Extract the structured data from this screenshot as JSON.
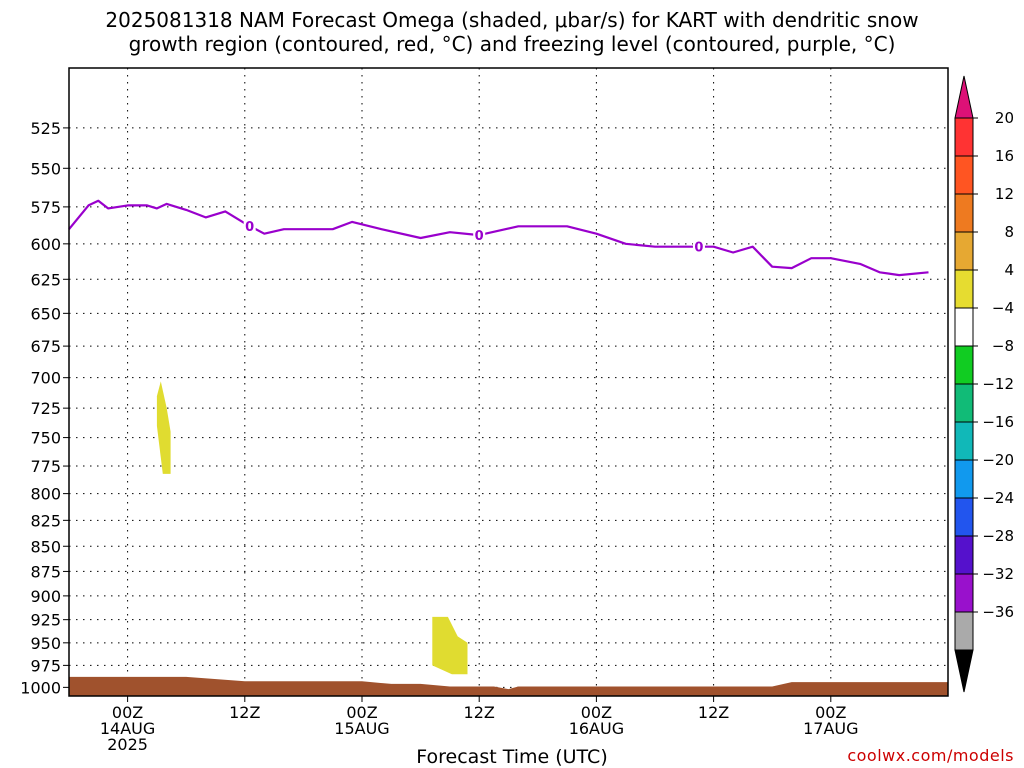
{
  "title_line1": "2025081318 NAM Forecast Omega (shaded, μbar/s) for KART with dendritic snow",
  "title_line2": "growth region (contoured, red, °C) and freezing level (contoured, purple, °C)",
  "xlabel": "Forecast Time (UTC)",
  "credit": "coolwx.com/models",
  "chart_data": {
    "type": "area",
    "title": "2025081318 NAM Forecast Omega (shaded, μbar/s) for KART with dendritic snow growth region (contoured, red, °C) and freezing level (contoured, purple, °C)",
    "xlabel": "Forecast Time (UTC)",
    "ylabel": "",
    "y_scale": "log-pressure",
    "y_inverted": true,
    "ylim": [
      1010,
      490
    ],
    "y_ticks": [
      525,
      550,
      575,
      600,
      625,
      650,
      675,
      700,
      725,
      750,
      775,
      800,
      825,
      850,
      875,
      900,
      925,
      950,
      975,
      1000
    ],
    "xlim": [
      "2025-08-13T18:00Z",
      "2025-08-17T12:00Z"
    ],
    "x_ticks": [
      {
        "t": "2025-08-14T00:00Z",
        "label": "00Z",
        "sub1": "14AUG",
        "sub2": "2025"
      },
      {
        "t": "2025-08-14T12:00Z",
        "label": "12Z",
        "sub1": "",
        "sub2": ""
      },
      {
        "t": "2025-08-15T00:00Z",
        "label": "00Z",
        "sub1": "15AUG",
        "sub2": ""
      },
      {
        "t": "2025-08-15T12:00Z",
        "label": "12Z",
        "sub1": "",
        "sub2": ""
      },
      {
        "t": "2025-08-16T00:00Z",
        "label": "00Z",
        "sub1": "16AUG",
        "sub2": ""
      },
      {
        "t": "2025-08-16T12:00Z",
        "label": "12Z",
        "sub1": "",
        "sub2": ""
      },
      {
        "t": "2025-08-17T00:00Z",
        "label": "00Z",
        "sub1": "17AUG",
        "sub2": ""
      }
    ],
    "grid": true,
    "freezing_level": {
      "contour_label": "0",
      "color": "#9900cc",
      "label_times": [
        "2025-08-14T12:30Z",
        "2025-08-15T12:00Z",
        "2025-08-16T10:30Z"
      ],
      "points": [
        [
          "2025-08-13T18:00Z",
          590
        ],
        [
          "2025-08-13T20:00Z",
          574
        ],
        [
          "2025-08-13T21:00Z",
          571
        ],
        [
          "2025-08-13T22:00Z",
          576
        ],
        [
          "2025-08-14T00:00Z",
          574
        ],
        [
          "2025-08-14T02:00Z",
          574
        ],
        [
          "2025-08-14T03:00Z",
          576
        ],
        [
          "2025-08-14T04:00Z",
          573
        ],
        [
          "2025-08-14T06:00Z",
          577
        ],
        [
          "2025-08-14T08:00Z",
          582
        ],
        [
          "2025-08-14T10:00Z",
          578
        ],
        [
          "2025-08-14T12:00Z",
          586
        ],
        [
          "2025-08-14T14:00Z",
          593
        ],
        [
          "2025-08-14T16:00Z",
          590
        ],
        [
          "2025-08-14T18:00Z",
          590
        ],
        [
          "2025-08-14T21:00Z",
          590
        ],
        [
          "2025-08-14T23:00Z",
          585
        ],
        [
          "2025-08-15T02:00Z",
          590
        ],
        [
          "2025-08-15T06:00Z",
          596
        ],
        [
          "2025-08-15T09:00Z",
          592
        ],
        [
          "2025-08-15T12:00Z",
          594
        ],
        [
          "2025-08-15T14:00Z",
          591
        ],
        [
          "2025-08-15T16:00Z",
          588
        ],
        [
          "2025-08-15T18:00Z",
          588
        ],
        [
          "2025-08-15T21:00Z",
          588
        ],
        [
          "2025-08-16T00:00Z",
          593
        ],
        [
          "2025-08-16T03:00Z",
          600
        ],
        [
          "2025-08-16T06:00Z",
          602
        ],
        [
          "2025-08-16T09:00Z",
          602
        ],
        [
          "2025-08-16T12:00Z",
          602
        ],
        [
          "2025-08-16T14:00Z",
          606
        ],
        [
          "2025-08-16T16:00Z",
          602
        ],
        [
          "2025-08-16T18:00Z",
          616
        ],
        [
          "2025-08-16T20:00Z",
          617
        ],
        [
          "2025-08-16T22:00Z",
          610
        ],
        [
          "2025-08-17T00:00Z",
          610
        ],
        [
          "2025-08-17T03:00Z",
          614
        ],
        [
          "2025-08-17T05:00Z",
          620
        ],
        [
          "2025-08-17T07:00Z",
          622
        ],
        [
          "2025-08-17T10:00Z",
          620
        ]
      ]
    },
    "omega_regions": [
      {
        "bin": "4 to 8",
        "color": "#e0dc30",
        "outline": [
          [
            "2025-08-14T03:24Z",
            703
          ],
          [
            "2025-08-14T04:00Z",
            725
          ],
          [
            "2025-08-14T04:24Z",
            745
          ],
          [
            "2025-08-14T04:24Z",
            782
          ],
          [
            "2025-08-14T03:36Z",
            782
          ],
          [
            "2025-08-14T03:00Z",
            740
          ],
          [
            "2025-08-14T03:00Z",
            715
          ]
        ]
      },
      {
        "bin": "4 to 8",
        "color": "#e0dc30",
        "outline": [
          [
            "2025-08-15T07:12Z",
            922
          ],
          [
            "2025-08-15T08:48Z",
            922
          ],
          [
            "2025-08-15T09:48Z",
            943
          ],
          [
            "2025-08-15T10:48Z",
            950
          ],
          [
            "2025-08-15T10:48Z",
            985
          ],
          [
            "2025-08-15T09:12Z",
            985
          ],
          [
            "2025-08-15T07:12Z",
            975
          ]
        ]
      }
    ],
    "terrain": {
      "color": "#a0522d",
      "surface_pressure": [
        [
          "2025-08-13T18:00Z",
          988
        ],
        [
          "2025-08-14T06:00Z",
          988
        ],
        [
          "2025-08-14T12:00Z",
          993
        ],
        [
          "2025-08-15T00:00Z",
          993
        ],
        [
          "2025-08-15T03:00Z",
          996
        ],
        [
          "2025-08-15T06:00Z",
          996
        ],
        [
          "2025-08-15T09:00Z",
          999
        ],
        [
          "2025-08-15T13:30Z",
          999
        ],
        [
          "2025-08-15T15:00Z",
          1002
        ],
        [
          "2025-08-15T16:00Z",
          999
        ],
        [
          "2025-08-16T12:00Z",
          999
        ],
        [
          "2025-08-16T18:00Z",
          999
        ],
        [
          "2025-08-16T20:00Z",
          994
        ],
        [
          "2025-08-17T12:00Z",
          994
        ]
      ]
    },
    "colorbar": {
      "labels": [
        "20",
        "16",
        "12",
        "8",
        "4",
        "-4",
        "-8",
        "-12",
        "-16",
        "-20",
        "-24",
        "-28",
        "-32",
        "-36"
      ],
      "colors": [
        "#ff3333",
        "#ff5522",
        "#ee7a20",
        "#e6a832",
        "#e6dc30",
        "#ffffff",
        "#11cc22",
        "#11bb77",
        "#11b8b8",
        "#1199ee",
        "#2255ee",
        "#5511cc",
        "#9911cc",
        "#aaaaaa"
      ],
      "top_arrow_color": "#dd1177",
      "bottom_arrow_color": "#000000"
    }
  }
}
